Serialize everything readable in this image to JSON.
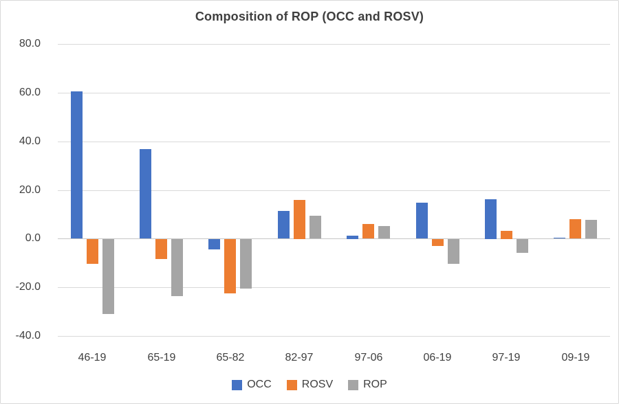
{
  "chart_data": {
    "type": "bar",
    "title": "Composition of ROP (OCC and ROSV)",
    "categories": [
      "46-19",
      "65-19",
      "65-82",
      "82-97",
      "97-06",
      "06-19",
      "97-19",
      "09-19"
    ],
    "series": [
      {
        "name": "OCC",
        "color": "#4472C4",
        "values": [
          60.4,
          36.8,
          -4.3,
          11.3,
          1.3,
          14.8,
          16.3,
          0.4
        ]
      },
      {
        "name": "ROSV",
        "color": "#ED7D31",
        "values": [
          -10.3,
          -8.3,
          -22.3,
          16.0,
          6.0,
          -2.8,
          3.3,
          8.0
        ]
      },
      {
        "name": "ROP",
        "color": "#A5A5A5",
        "values": [
          -30.7,
          -23.3,
          -20.4,
          9.3,
          5.1,
          -10.3,
          -5.7,
          7.7
        ]
      }
    ],
    "xlabel": "",
    "ylabel": "",
    "ylim": [
      -40,
      80
    ],
    "yticks": [
      80,
      60,
      40,
      20,
      0,
      -20,
      -40
    ],
    "ytick_labels": [
      "80.0",
      "60.0",
      "40.0",
      "20.0",
      "0.0",
      "-20.0",
      "-40.0"
    ],
    "grid": true,
    "legend_position": "bottom"
  },
  "colors": {
    "grid": "#D9D9D9",
    "zero_line": "#C6C6C6",
    "text": "#404040",
    "frame_border": "#D9D9D9",
    "background": "#FFFFFF"
  }
}
